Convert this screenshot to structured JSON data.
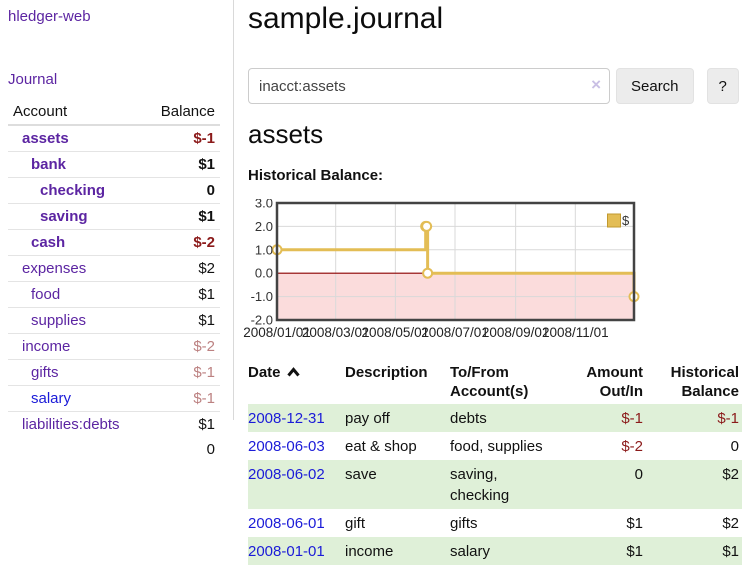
{
  "sidebar": {
    "brand": "hledger-web",
    "journal_link": "Journal",
    "table": {
      "headers": {
        "account": "Account",
        "balance": "Balance"
      },
      "accounts": [
        {
          "name": "assets",
          "depth": 1,
          "bold": true,
          "balance": "$-1",
          "balance_style": "neg-strong"
        },
        {
          "name": "bank",
          "depth": 2,
          "bold": true,
          "balance": "$1",
          "balance_style": "plain"
        },
        {
          "name": "checking",
          "depth": 3,
          "bold": true,
          "balance": "0",
          "balance_style": "plain"
        },
        {
          "name": "saving",
          "depth": 3,
          "bold": true,
          "balance": "$1",
          "balance_style": "plain"
        },
        {
          "name": "cash",
          "depth": 2,
          "bold": true,
          "balance": "$-2",
          "balance_style": "neg-strong"
        },
        {
          "name": "expenses",
          "depth": 1,
          "bold": false,
          "balance": "$2",
          "balance_style": "plain"
        },
        {
          "name": "food",
          "depth": 2,
          "bold": false,
          "balance": "$1",
          "balance_style": "plain"
        },
        {
          "name": "supplies",
          "depth": 2,
          "bold": false,
          "balance": "$1",
          "balance_style": "plain"
        },
        {
          "name": "income",
          "depth": 1,
          "bold": false,
          "balance": "$-2",
          "balance_style": "neg-muted"
        },
        {
          "name": "gifts",
          "depth": 2,
          "bold": false,
          "balance": "$-1",
          "balance_style": "neg-muted"
        },
        {
          "name": "salary",
          "depth": 2,
          "bold": false,
          "balance": "$-1",
          "balance_style": "neg-muted",
          "link_style": "blue"
        },
        {
          "name": "liabilities:debts",
          "depth": 1,
          "bold": false,
          "balance": "$1",
          "balance_style": "plain"
        }
      ],
      "total": "0"
    }
  },
  "header": {
    "title": "sample.journal"
  },
  "search": {
    "value": "inacct:assets",
    "clear_icon": "×",
    "button_label": "Search",
    "help_label": "?"
  },
  "account_page": {
    "heading": "assets",
    "chart_label": "Historical Balance:"
  },
  "chart_data": {
    "type": "line",
    "title": "Historical Balance",
    "step": "after",
    "xlim_days": [
      0,
      365
    ],
    "ylim": [
      -2,
      3
    ],
    "y_ticks": [
      "3.0",
      "2.0",
      "1.0",
      "0.0",
      "-1.0",
      "-2.0"
    ],
    "y_tick_values": [
      3,
      2,
      1,
      0,
      -1,
      -2
    ],
    "x_ticks": [
      {
        "label": "2008/01/01",
        "day": 0
      },
      {
        "label": "2008/03/01",
        "day": 60
      },
      {
        "label": "2008/05/01",
        "day": 121
      },
      {
        "label": "2008/07/01",
        "day": 182
      },
      {
        "label": "2008/09/01",
        "day": 244
      },
      {
        "label": "2008/11/01",
        "day": 305
      }
    ],
    "series": [
      {
        "name": "$",
        "color": "#e3bd55",
        "points": [
          {
            "date": "2008-01-01",
            "day": 0,
            "value": 1
          },
          {
            "date": "2008-06-01",
            "day": 152,
            "value": 2
          },
          {
            "date": "2008-06-02",
            "day": 153,
            "value": 2
          },
          {
            "date": "2008-06-03",
            "day": 154,
            "value": 0
          },
          {
            "date": "2008-12-31",
            "day": 365,
            "value": -1
          }
        ]
      }
    ],
    "legend": {
      "label": "$",
      "position": "top-right"
    },
    "grid": true,
    "negative_region_fill": "#fbdcdc",
    "zero_line_color": "#8b0000"
  },
  "register": {
    "headers": {
      "date": "Date",
      "description": "Description",
      "tofrom": "To/From\nAccount(s)",
      "amount": "Amount\nOut/In",
      "balance": "Historical\nBalance"
    },
    "rows": [
      {
        "date": "2008-12-31",
        "description": "pay off",
        "accounts": "debts",
        "amount": "$-1",
        "amount_neg": true,
        "balance": "$-1",
        "balance_neg": true,
        "shaded": true
      },
      {
        "date": "2008-06-03",
        "description": "eat & shop",
        "accounts": "food, supplies",
        "amount": "$-2",
        "amount_neg": true,
        "balance": "0",
        "balance_neg": false,
        "shaded": false
      },
      {
        "date": "2008-06-02",
        "description": "save",
        "accounts": "saving,\nchecking",
        "amount": "0",
        "amount_neg": false,
        "balance": "$2",
        "balance_neg": false,
        "shaded": true
      },
      {
        "date": "2008-06-01",
        "description": "gift",
        "accounts": "gifts",
        "amount": "$1",
        "amount_neg": false,
        "balance": "$2",
        "balance_neg": false,
        "shaded": false
      },
      {
        "date": "2008-01-01",
        "description": "income",
        "accounts": "salary",
        "amount": "$1",
        "amount_neg": false,
        "balance": "$1",
        "balance_neg": false,
        "shaded": true
      }
    ]
  },
  "colors": {
    "purple_link": "#5c25a2",
    "blue_link": "#1b1bd8",
    "negative_red": "#8b1a1a",
    "negative_muted": "#bc8181",
    "row_stripe_green": "#dff0d8",
    "chart_line_gold": "#e3bd55",
    "chart_negative_fill": "#fbdcdc",
    "chart_zero_line": "#8b0000",
    "chart_border": "#434343"
  }
}
